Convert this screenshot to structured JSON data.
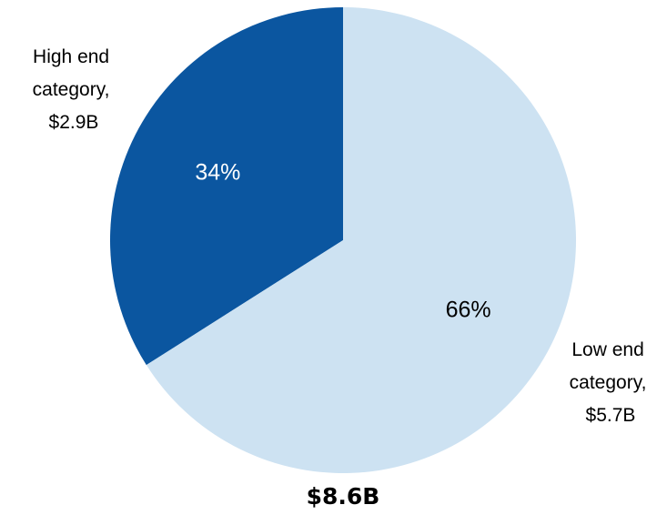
{
  "chart_data": {
    "type": "pie",
    "total_label": "$8.6B",
    "slices": [
      {
        "name": "High end category",
        "label_lines": [
          "High end",
          "category,",
          "$2.9B"
        ],
        "value": 2.9,
        "value_label": "$2.9B",
        "percent": 34,
        "percent_label": "34%",
        "color": "#0b56a0",
        "text_color": "#ffffff"
      },
      {
        "name": "Low end category",
        "label_lines": [
          "Low end",
          "category,",
          "$5.7B"
        ],
        "value": 5.7,
        "value_label": "$5.7B",
        "percent": 66,
        "percent_label": "66%",
        "color": "#cde2f2",
        "text_color": "#000000"
      }
    ]
  }
}
